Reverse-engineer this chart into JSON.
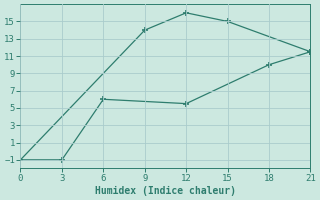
{
  "line1_x": [
    0,
    9,
    12,
    15,
    21
  ],
  "line1_y": [
    -1,
    14,
    16,
    15,
    11.5
  ],
  "line2_x": [
    0,
    3,
    6,
    12,
    18,
    21
  ],
  "line2_y": [
    -1,
    -1,
    6,
    5.5,
    10,
    11.5
  ],
  "line_color": "#2e7d6e",
  "bg_color": "#cce8e0",
  "grid_color": "#aacccc",
  "xlabel": "Humidex (Indice chaleur)",
  "xlim": [
    0,
    21
  ],
  "ylim": [
    -2,
    17
  ],
  "xticks": [
    0,
    3,
    6,
    9,
    12,
    15,
    18,
    21
  ],
  "yticks": [
    -1,
    1,
    3,
    5,
    7,
    9,
    11,
    13,
    15
  ],
  "marker": "+",
  "tick_fontsize": 6.5,
  "xlabel_fontsize": 7
}
